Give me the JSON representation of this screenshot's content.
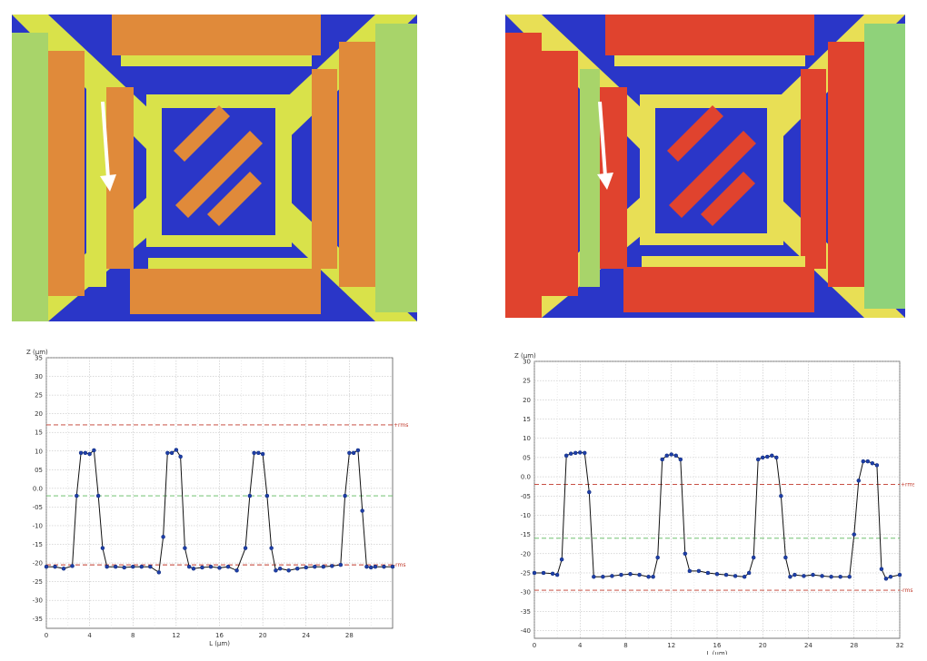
{
  "images": {
    "left": {
      "description_icon": "mems-comb-drive-height-map",
      "colors": {
        "background": "#2a36c8",
        "frame": "#d9e24a",
        "combs": "#e08a3a",
        "fingers": "#6fc9a0"
      }
    },
    "right": {
      "description_icon": "mems-comb-drive-height-map",
      "colors": {
        "background": "#2a36c8",
        "frame": "#e8df55",
        "combs": "#e0432e",
        "fingers": "#8fd27a"
      }
    },
    "arrow_icon": "arrow-down-icon"
  },
  "chart_data": [
    {
      "type": "line",
      "title": "",
      "ylabel": "Z (µm)",
      "xlabel": "L (µm)",
      "xlim": [
        0,
        32
      ],
      "ylim": [
        -37.5,
        35
      ],
      "xticks": [
        "0",
        "4",
        "8",
        "12",
        "16",
        "20",
        "24",
        "28"
      ],
      "yticks": [
        "35",
        "30",
        "25",
        "20",
        "15",
        "10",
        "05",
        "0.0",
        "-05",
        "-10",
        "-15",
        "-20",
        "-25",
        "-30",
        "-35"
      ],
      "grid": true,
      "reference_lines": [
        {
          "label": "+rms",
          "value": 17,
          "color": "#c0392b"
        },
        {
          "label": "",
          "value": -2,
          "color": "#5cb85c"
        },
        {
          "label": "-rms",
          "value": -20.5,
          "color": "#c0392b"
        }
      ],
      "series": [
        {
          "color": "#1f3fa8",
          "x": [
            0,
            0.8,
            1.6,
            2.4,
            2.8,
            3.2,
            3.6,
            4.0,
            4.4,
            4.8,
            5.2,
            5.6,
            6.4,
            7.2,
            8.0,
            8.8,
            9.6,
            10.4,
            10.8,
            11.2,
            11.6,
            12.0,
            12.4,
            12.8,
            13.2,
            13.6,
            14.4,
            15.2,
            16.0,
            16.8,
            17.6,
            18.4,
            18.8,
            19.2,
            19.6,
            20.0,
            20.4,
            20.8,
            21.2,
            21.6,
            22.4,
            23.2,
            24.0,
            24.8,
            25.6,
            26.4,
            27.2,
            27.6,
            28.0,
            28.4,
            28.8,
            29.2,
            29.6,
            30.0,
            30.4,
            31.2,
            32.0
          ],
          "y": [
            -21,
            -21,
            -21.5,
            -20.8,
            -2,
            9.5,
            9.5,
            9.2,
            10.2,
            -2,
            -16,
            -21,
            -21,
            -21.2,
            -21,
            -21,
            -21,
            -22.5,
            -13,
            9.5,
            9.5,
            10.3,
            8.5,
            -16,
            -21,
            -21.5,
            -21.2,
            -21,
            -21.3,
            -21,
            -22,
            -16,
            -2,
            9.5,
            9.5,
            9.2,
            -2,
            -16,
            -22,
            -21.5,
            -22,
            -21.5,
            -21.2,
            -21,
            -21,
            -20.8,
            -20.5,
            -2,
            9.5,
            9.5,
            10.2,
            -6,
            -21,
            -21.2,
            -21,
            -21,
            -21
          ]
        }
      ]
    },
    {
      "type": "line",
      "title": "",
      "ylabel": "Z (µm)",
      "xlabel": "L (µm)",
      "xlim": [
        0,
        32
      ],
      "ylim": [
        -42,
        30
      ],
      "xticks": [
        "0",
        "4",
        "8",
        "12",
        "16",
        "20",
        "24",
        "28",
        "32"
      ],
      "yticks": [
        "30",
        "25",
        "20",
        "15",
        "10",
        "05",
        "0.0",
        "-05",
        "-10",
        "-15",
        "-20",
        "-25",
        "-30",
        "-35",
        "-40"
      ],
      "grid": true,
      "reference_lines": [
        {
          "label": "+rms",
          "value": -2,
          "color": "#c0392b"
        },
        {
          "label": "",
          "value": -16,
          "color": "#5cb85c"
        },
        {
          "label": "-rms",
          "value": -29.5,
          "color": "#c0392b"
        }
      ],
      "series": [
        {
          "color": "#1f3fa8",
          "x": [
            0,
            0.8,
            1.6,
            2.0,
            2.4,
            2.8,
            3.2,
            3.6,
            4.0,
            4.4,
            4.8,
            5.2,
            6.0,
            6.8,
            7.6,
            8.4,
            9.2,
            10.0,
            10.4,
            10.8,
            11.2,
            11.6,
            12.0,
            12.4,
            12.8,
            13.2,
            13.6,
            14.4,
            15.2,
            16.0,
            16.8,
            17.6,
            18.4,
            18.8,
            19.2,
            19.6,
            20.0,
            20.4,
            20.8,
            21.2,
            21.6,
            22.0,
            22.4,
            22.8,
            23.6,
            24.4,
            25.2,
            26.0,
            26.8,
            27.6,
            28.0,
            28.4,
            28.8,
            29.2,
            29.6,
            30.0,
            30.4,
            30.8,
            31.2,
            32.0
          ],
          "y": [
            -25,
            -25,
            -25.2,
            -25.5,
            -21.5,
            5.5,
            6.0,
            6.2,
            6.3,
            6.2,
            -4,
            -26,
            -26,
            -25.8,
            -25.5,
            -25.3,
            -25.5,
            -26,
            -26,
            -21,
            4.5,
            5.5,
            5.8,
            5.5,
            4.5,
            -20,
            -24.5,
            -24.5,
            -25,
            -25.3,
            -25.5,
            -25.8,
            -26,
            -25,
            -21,
            4.5,
            5.0,
            5.2,
            5.5,
            5.0,
            -5,
            -21,
            -26,
            -25.5,
            -25.8,
            -25.5,
            -25.8,
            -26,
            -26,
            -26,
            -15,
            -1,
            4.0,
            4.0,
            3.5,
            3.0,
            -24,
            -26.5,
            -26,
            -25.5
          ]
        }
      ]
    }
  ]
}
